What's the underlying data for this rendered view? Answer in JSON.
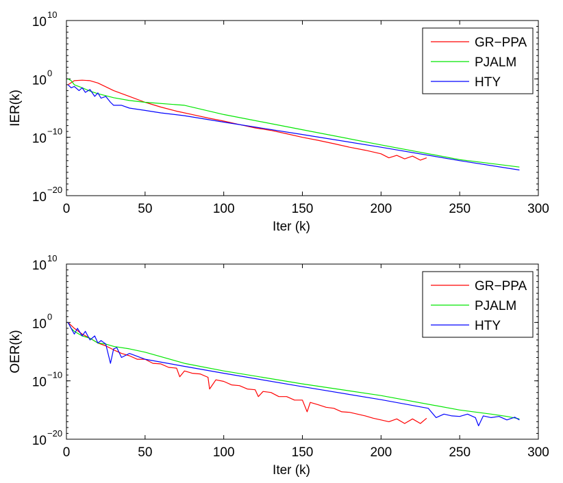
{
  "chart_data": [
    {
      "type": "line",
      "title": "",
      "xlabel": "Iter (k)",
      "ylabel": "IER(k)",
      "yscale": "log",
      "xlim": [
        0,
        300
      ],
      "ylim": [
        1e-20,
        10000000000.0
      ],
      "x_ticks": [
        0,
        50,
        100,
        150,
        200,
        250,
        300
      ],
      "y_ticks": [
        {
          "value": 1e-20,
          "base": "10",
          "exp": "−20"
        },
        {
          "value": 1e-10,
          "base": "10",
          "exp": "−10"
        },
        {
          "value": 1.0,
          "base": "10",
          "exp": "0"
        },
        {
          "value": 10000000000.0,
          "base": "10",
          "exp": "10"
        }
      ],
      "legend": {
        "position": "top-right",
        "items": [
          "GR−PPA",
          "PJALM",
          "HTY"
        ]
      },
      "grid": false,
      "series": [
        {
          "name": "GR−PPA",
          "color": "#ff0000",
          "x": [
            1,
            5,
            10,
            15,
            20,
            30,
            40,
            50,
            60,
            70,
            80,
            90,
            100,
            110,
            120,
            130,
            140,
            150,
            160,
            170,
            180,
            190,
            200,
            205,
            210,
            215,
            220,
            225,
            229
          ],
          "y": [
            0.1,
            0.5,
            0.6,
            0.5,
            0.2,
            0.01,
            0.001,
            0.0001,
            1.5e-05,
            3e-06,
            8e-07,
            2e-07,
            6e-08,
            1.5e-08,
            4e-09,
            1.5e-09,
            4e-10,
            1e-10,
            3e-11,
            8e-12,
            2e-12,
            6e-13,
            1.5e-13,
            3e-14,
            8e-14,
            2e-14,
            6e-14,
            1.2e-14,
            3e-14
          ]
        },
        {
          "name": "PJALM",
          "color": "#00e600",
          "x": [
            1,
            3,
            5,
            10,
            15,
            20,
            30,
            40,
            50,
            75,
            100,
            150,
            200,
            250,
            288
          ],
          "y": [
            1.0,
            0.5,
            0.1,
            0.03,
            0.008,
            0.003,
            0.0006,
            0.0002,
            0.0001,
            3e-05,
            8e-07,
            2e-09,
            5e-12,
            1.5e-14,
            8e-16
          ]
        },
        {
          "name": "HTY",
          "color": "#0000ff",
          "x": [
            1,
            3,
            5,
            8,
            10,
            12,
            15,
            18,
            20,
            22,
            25,
            28,
            30,
            35,
            40,
            50,
            60,
            75,
            100,
            150,
            200,
            250,
            288
          ],
          "y": [
            0.1,
            0.03,
            0.05,
            0.01,
            0.03,
            0.005,
            0.015,
            0.001,
            0.004,
            0.0005,
            0.001,
            0.0001,
            3e-05,
            3e-05,
            1e-05,
            4e-06,
            1.5e-06,
            5e-07,
            4e-08,
            3e-10,
            2e-12,
            1e-14,
            2.5e-16
          ]
        }
      ]
    },
    {
      "type": "line",
      "title": "",
      "xlabel": "Iter (k)",
      "ylabel": "OER(k)",
      "yscale": "log",
      "xlim": [
        0,
        300
      ],
      "ylim": [
        1e-20,
        10000000000.0
      ],
      "x_ticks": [
        0,
        50,
        100,
        150,
        200,
        250,
        300
      ],
      "y_ticks": [
        {
          "value": 1e-20,
          "base": "10",
          "exp": "−20"
        },
        {
          "value": 1e-10,
          "base": "10",
          "exp": "−10"
        },
        {
          "value": 1.0,
          "base": "10",
          "exp": "0"
        },
        {
          "value": 10000000000.0,
          "base": "10",
          "exp": "10"
        }
      ],
      "legend": {
        "position": "top-right",
        "items": [
          "GR−PPA",
          "PJALM",
          "HTY"
        ]
      },
      "grid": false,
      "series": [
        {
          "name": "GR−PPA",
          "color": "#ff0000",
          "x": [
            1,
            5,
            10,
            15,
            20,
            25,
            30,
            35,
            40,
            45,
            50,
            55,
            60,
            65,
            70,
            72,
            75,
            80,
            85,
            90,
            91,
            95,
            100,
            105,
            110,
            115,
            120,
            122,
            125,
            130,
            135,
            140,
            145,
            150,
            153,
            155,
            160,
            165,
            170,
            175,
            180,
            185,
            190,
            195,
            200,
            205,
            210,
            215,
            220,
            225,
            229
          ],
          "y": [
            1.0,
            0.1,
            0.01,
            0.002,
            0.0003,
            0.0001,
            2e-05,
            5e-06,
            2e-06,
            5e-07,
            5e-07,
            1e-07,
            8e-08,
            2e-08,
            1.5e-08,
            5e-10,
            5e-09,
            2e-09,
            1.5e-09,
            4e-10,
            4e-12,
            1.5e-10,
            8e-11,
            2e-11,
            1.5e-11,
            4e-12,
            3e-12,
            2e-13,
            1.5e-12,
            1e-12,
            2e-13,
            2e-13,
            5e-14,
            5e-14,
            5e-16,
            2e-14,
            8e-15,
            3e-15,
            2e-15,
            5e-16,
            4e-16,
            2e-16,
            1e-16,
            4e-17,
            2e-17,
            1e-17,
            3e-17,
            5e-18,
            3e-17,
            5e-18,
            4e-17
          ]
        },
        {
          "name": "PJALM",
          "color": "#00e600",
          "x": [
            1,
            3,
            5,
            10,
            15,
            20,
            25,
            30,
            40,
            50,
            75,
            100,
            150,
            200,
            250,
            270,
            280,
            288
          ],
          "y": [
            1.0,
            0.1,
            0.03,
            0.005,
            0.002,
            0.0003,
            0.0002,
            8e-05,
            3e-05,
            8e-06,
            1e-07,
            5e-09,
            3e-11,
            3e-13,
            1e-15,
            2e-16,
            8e-17,
            3e-17
          ]
        },
        {
          "name": "HTY",
          "color": "#0000ff",
          "x": [
            1,
            3,
            5,
            7,
            10,
            12,
            15,
            18,
            20,
            22,
            25,
            28,
            30,
            32,
            35,
            40,
            50,
            75,
            100,
            150,
            200,
            230,
            235,
            240,
            245,
            250,
            255,
            260,
            262,
            265,
            270,
            275,
            280,
            285,
            288
          ],
          "y": [
            1.0,
            0.1,
            0.01,
            0.1,
            0.005,
            0.03,
            0.001,
            0.005,
            0.0003,
            0.0008,
            0.0002,
            1e-07,
            3e-05,
            5e-05,
            1e-06,
            5e-06,
            5e-07,
            3e-08,
            2e-09,
            1e-11,
            6e-14,
            2e-15,
            5e-17,
            2e-16,
            1e-16,
            8e-17,
            2e-16,
            5e-17,
            2e-18,
            1e-16,
            5e-17,
            8e-17,
            2e-17,
            6e-17,
            2e-17
          ]
        }
      ]
    }
  ]
}
